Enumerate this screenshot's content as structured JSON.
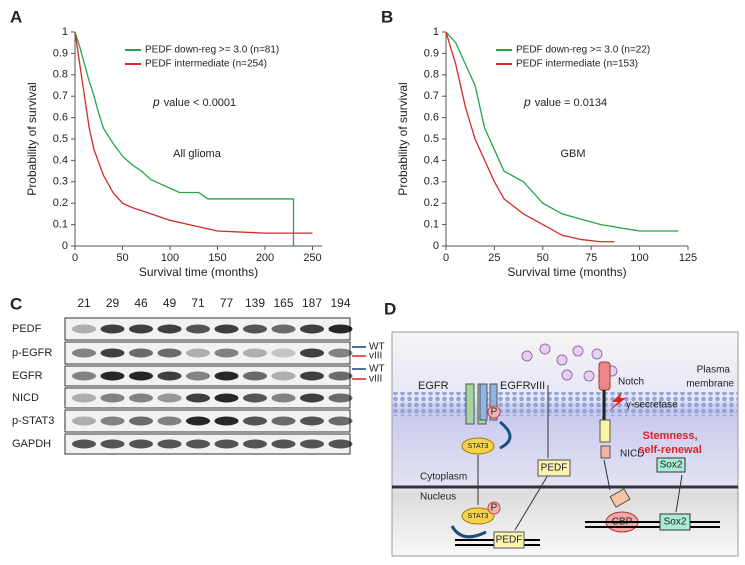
{
  "chart_data": [
    {
      "type": "line",
      "panel": "A",
      "xlabel": "Survival time (months)",
      "ylabel": "Probability of survival",
      "xlim": [
        0,
        260
      ],
      "xticks": [
        0,
        50,
        100,
        150,
        200,
        250
      ],
      "ylim": [
        0,
        1
      ],
      "yticks": [
        0,
        0.1,
        0.2,
        0.3,
        0.4,
        0.5,
        0.6,
        0.7,
        0.8,
        0.9,
        1
      ],
      "annotation": {
        "symbol": "p",
        "text": "value < 0.0001"
      },
      "subtitle": "All glioma",
      "series": [
        {
          "name": "PEDF down-reg >= 3.0 (n=81)",
          "color": "#22a845",
          "x": [
            0,
            5,
            10,
            15,
            20,
            25,
            30,
            40,
            50,
            60,
            70,
            80,
            90,
            100,
            110,
            130,
            140,
            190,
            230,
            230
          ],
          "values": [
            1,
            0.93,
            0.85,
            0.77,
            0.7,
            0.62,
            0.55,
            0.48,
            0.42,
            0.38,
            0.35,
            0.31,
            0.29,
            0.27,
            0.25,
            0.25,
            0.22,
            0.22,
            0.22,
            0
          ]
        },
        {
          "name": "PEDF intermediate (n=254)",
          "color": "#d42a2a",
          "x": [
            0,
            5,
            10,
            15,
            20,
            30,
            40,
            50,
            60,
            80,
            100,
            120,
            140,
            150,
            200,
            250
          ],
          "values": [
            1,
            0.85,
            0.7,
            0.55,
            0.45,
            0.33,
            0.25,
            0.2,
            0.18,
            0.15,
            0.12,
            0.1,
            0.08,
            0.07,
            0.06,
            0.06
          ]
        }
      ]
    },
    {
      "type": "line",
      "panel": "B",
      "xlabel": "Survival time (months)",
      "ylabel": "Probability of survival",
      "xlim": [
        0,
        125
      ],
      "xticks": [
        0,
        25,
        50,
        75,
        100,
        125
      ],
      "ylim": [
        0,
        1
      ],
      "yticks": [
        0,
        0.1,
        0.2,
        0.3,
        0.4,
        0.5,
        0.6,
        0.7,
        0.8,
        0.9,
        1
      ],
      "annotation": {
        "symbol": "p",
        "text": "value = 0.0134"
      },
      "subtitle": "GBM",
      "series": [
        {
          "name": "PEDF down-reg >= 3.0 (n=22)",
          "color": "#22a845",
          "x": [
            0,
            5,
            10,
            15,
            20,
            25,
            30,
            40,
            45,
            50,
            60,
            80,
            100,
            120
          ],
          "values": [
            1,
            0.95,
            0.85,
            0.75,
            0.55,
            0.45,
            0.35,
            0.3,
            0.25,
            0.2,
            0.15,
            0.1,
            0.07,
            0.07
          ]
        },
        {
          "name": "PEDF intermediate (n=153)",
          "color": "#d42a2a",
          "x": [
            0,
            5,
            10,
            15,
            20,
            25,
            30,
            40,
            50,
            60,
            70,
            80,
            87
          ],
          "values": [
            1,
            0.85,
            0.65,
            0.5,
            0.4,
            0.3,
            0.22,
            0.15,
            0.1,
            0.05,
            0.03,
            0.02,
            0.02
          ]
        }
      ]
    }
  ],
  "blot": {
    "panel": "C",
    "lanes": [
      "21",
      "29",
      "46",
      "49",
      "71",
      "77",
      "139",
      "165",
      "187",
      "194"
    ],
    "rows": [
      "PEDF",
      "p-EGFR",
      "EGFR",
      "NICD",
      "p-STAT3",
      "GAPDH"
    ],
    "markers": [
      "WT",
      "vIII",
      "WT",
      "vIII"
    ]
  },
  "diagram": {
    "panel": "D",
    "egfr": "EGFR",
    "egfrviii": "EGFRvIII",
    "p1": "P",
    "stat3a": "STAT3",
    "p2": "P",
    "stat3b": "STAT3",
    "cytoplasm": "Cytoplasm",
    "nucleus": "Nucleus",
    "pedf1": "PEDF",
    "pedf2": "PEDF",
    "notch": "Notch",
    "secretase": "γ-secretase",
    "membrane1": "Plasma",
    "membrane2": "membrane",
    "nicd": "NICD",
    "stem1": "Stemness,",
    "stem2": "self-renewal",
    "sox2a": "Sox2",
    "sox2b": "Sox2",
    "cbp": "CBP"
  }
}
